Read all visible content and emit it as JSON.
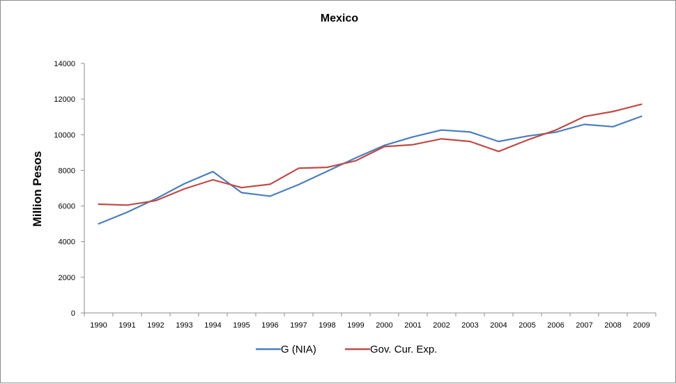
{
  "chart_data": {
    "type": "line",
    "title": "Mexico",
    "xlabel": "",
    "ylabel": "Million Pesos",
    "ylim": [
      0,
      14000
    ],
    "yticks": [
      0,
      2000,
      4000,
      6000,
      8000,
      10000,
      12000,
      14000
    ],
    "categories": [
      "1990",
      "1991",
      "1992",
      "1993",
      "1994",
      "1995",
      "1996",
      "1997",
      "1998",
      "1999",
      "2000",
      "2001",
      "2002",
      "2003",
      "2004",
      "2005",
      "2006",
      "2007",
      "2008",
      "2009"
    ],
    "grid": false,
    "legend_position": "bottom",
    "series": [
      {
        "name": "G (NIA)",
        "color": "#4a7ebb",
        "values": [
          5000,
          5650,
          6400,
          7250,
          7930,
          6750,
          6550,
          7200,
          7950,
          8700,
          9400,
          9880,
          10260,
          10150,
          9620,
          9920,
          10140,
          10580,
          10450,
          11030
        ]
      },
      {
        "name": "Gov. Cur. Exp.",
        "color": "#be4b48",
        "values": [
          6100,
          6050,
          6300,
          6960,
          7470,
          7030,
          7220,
          8120,
          8170,
          8540,
          9330,
          9440,
          9770,
          9620,
          9060,
          9700,
          10260,
          11020,
          11300,
          11710
        ]
      }
    ]
  }
}
